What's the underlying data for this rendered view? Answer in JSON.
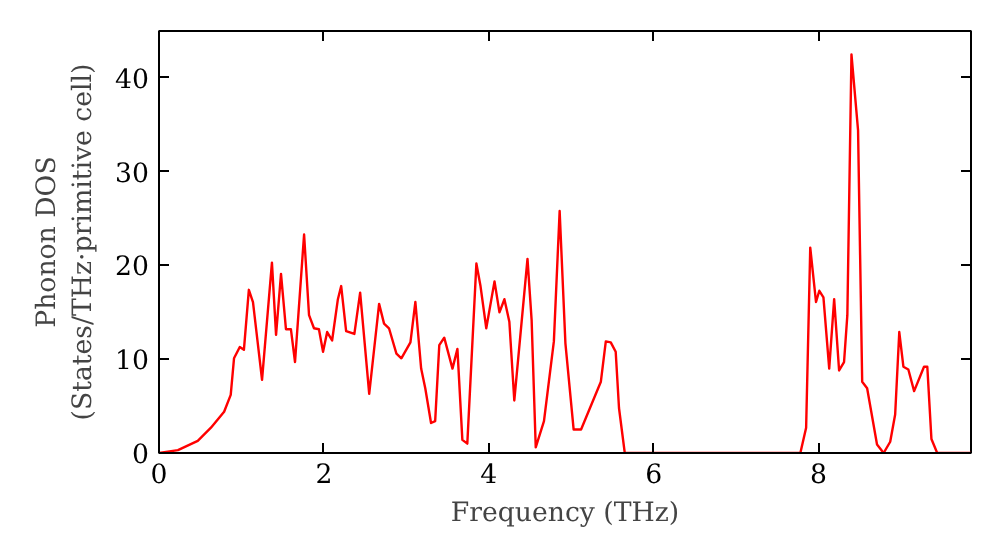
{
  "chart_data": {
    "type": "line",
    "xlabel": "Frequency (THz)",
    "ylabel": "Phonon DOS\n(States/THz·primitive cell)",
    "xlim": [
      0,
      9.85
    ],
    "ylim": [
      0,
      45
    ],
    "xticks": [
      0,
      2,
      4,
      6,
      8
    ],
    "yticks": [
      0,
      10,
      20,
      30,
      40
    ],
    "grid": false,
    "marker": "none",
    "line_style": "solid",
    "series": [
      {
        "color": "#ff0000",
        "x": [
          0,
          0.23,
          0.47,
          0.63,
          0.79,
          0.87,
          0.91,
          0.98,
          1.03,
          1.09,
          1.14,
          1.25,
          1.37,
          1.42,
          1.48,
          1.54,
          1.6,
          1.65,
          1.76,
          1.82,
          1.88,
          1.94,
          1.99,
          2.04,
          2.1,
          2.17,
          2.21,
          2.27,
          2.37,
          2.44,
          2.55,
          2.67,
          2.73,
          2.79,
          2.88,
          2.94,
          3.05,
          3.11,
          3.18,
          3.23,
          3.3,
          3.35,
          3.4,
          3.46,
          3.56,
          3.62,
          3.68,
          3.74,
          3.85,
          3.9,
          3.97,
          4.07,
          4.13,
          4.19,
          4.25,
          4.31,
          4.47,
          4.52,
          4.57,
          4.67,
          4.79,
          4.86,
          4.93,
          5.03,
          5.12,
          5.36,
          5.42,
          5.48,
          5.54,
          5.58,
          5.65,
          7.78,
          7.85,
          7.9,
          7.97,
          8.01,
          8.06,
          8.13,
          8.19,
          8.25,
          8.31,
          8.35,
          8.4,
          8.48,
          8.53,
          8.59,
          8.71,
          8.79,
          8.87,
          8.93,
          8.98,
          9.03,
          9.09,
          9.16,
          9.28,
          9.32,
          9.37,
          9.44,
          9.85
        ],
        "values": [
          0,
          0.3,
          1.3,
          2.7,
          4.4,
          6.2,
          10.1,
          11.3,
          11.0,
          17.4,
          16.1,
          7.8,
          20.3,
          12.6,
          19.1,
          13.2,
          13.2,
          9.7,
          23.3,
          14.7,
          13.3,
          13.2,
          10.8,
          12.9,
          12.0,
          16.4,
          17.8,
          13.0,
          12.7,
          17.1,
          6.3,
          15.9,
          13.8,
          13.3,
          10.6,
          10.1,
          11.8,
          16.1,
          9.0,
          6.9,
          3.2,
          3.4,
          11.5,
          12.3,
          9.0,
          11.1,
          1.4,
          1.0,
          20.2,
          17.8,
          13.3,
          18.3,
          15.0,
          16.4,
          14.0,
          5.6,
          20.7,
          14.2,
          0.6,
          3.4,
          11.9,
          25.8,
          11.7,
          2.5,
          2.5,
          7.6,
          11.9,
          11.8,
          10.8,
          4.8,
          0,
          0,
          2.7,
          21.9,
          16.1,
          17.3,
          16.6,
          9.0,
          16.4,
          8.8,
          9.7,
          14.7,
          42.5,
          34.4,
          7.6,
          6.9,
          0.9,
          0,
          1.2,
          4.1,
          12.9,
          9.2,
          8.9,
          6.6,
          9.2,
          9.2,
          1.5,
          0,
          0
        ]
      }
    ]
  }
}
